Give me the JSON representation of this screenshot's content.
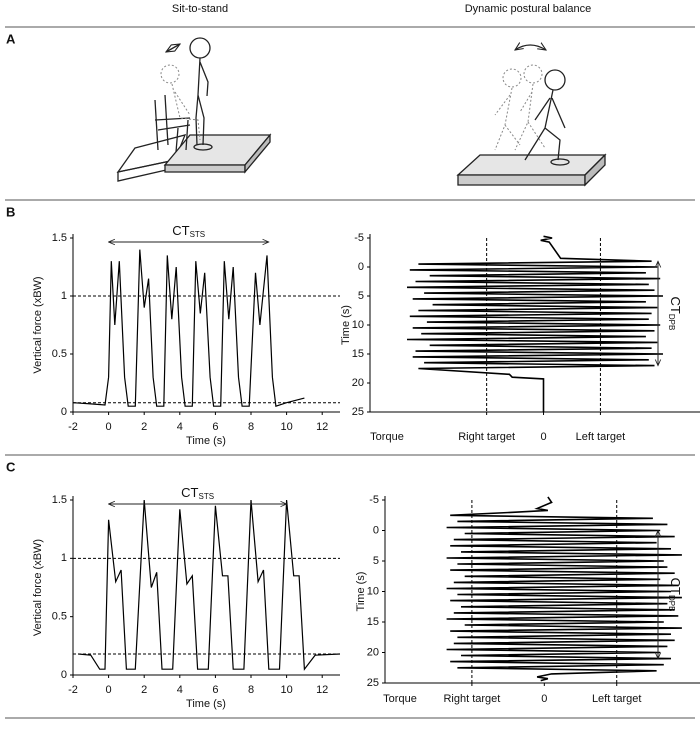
{
  "header": {
    "columns": [
      "Sit-to-stand",
      "Dynamic postural balance"
    ]
  },
  "panel_labels": [
    "A",
    "B",
    "C"
  ],
  "chart_data": [
    {
      "type": "line",
      "xlabel": "Time (s)",
      "ylabel": "Vertical force (xBW)",
      "color": "#000000",
      "xlim": [
        -2,
        13
      ],
      "ylim": [
        0,
        1.5
      ],
      "xticks": [
        -2,
        0,
        2,
        4,
        6,
        8,
        10,
        12
      ],
      "yticks": [
        0,
        0.5,
        1,
        1.5
      ],
      "hlines": [
        1,
        0.08
      ],
      "annotation": {
        "text": "CT",
        "subscript": "STS",
        "span": [
          0,
          9
        ],
        "axis": "x"
      },
      "x": [
        -2,
        -1,
        -0.2,
        0,
        0.15,
        0.35,
        0.6,
        0.9,
        1.1,
        1.5,
        1.75,
        2.0,
        2.25,
        2.5,
        2.7,
        3.1,
        3.3,
        3.55,
        3.8,
        4.1,
        4.3,
        4.7,
        4.9,
        5.15,
        5.4,
        5.7,
        5.9,
        6.3,
        6.5,
        6.75,
        7.0,
        7.3,
        7.5,
        7.9,
        8.25,
        8.5,
        8.9,
        9.2,
        9.4,
        10,
        11
      ],
      "values": [
        0.08,
        0.07,
        0.06,
        0.3,
        1.3,
        0.75,
        1.3,
        0.3,
        0.05,
        0.05,
        1.4,
        0.9,
        1.15,
        0.3,
        0.05,
        0.05,
        1.35,
        0.8,
        1.25,
        0.3,
        0.05,
        0.05,
        1.3,
        0.85,
        1.2,
        0.3,
        0.05,
        0.05,
        1.3,
        0.8,
        1.25,
        0.3,
        0.05,
        0.05,
        1.2,
        0.75,
        1.35,
        0.3,
        0.05,
        0.08,
        0.12
      ]
    },
    {
      "type": "line",
      "xlabel": "Torque",
      "ylabel": "Time (s)",
      "color": "#000000",
      "y_inverted": true,
      "xlim": [
        -3.05,
        2.75
      ],
      "ylim": [
        -5,
        25
      ],
      "xticks": [
        {
          "value": -1,
          "label": "Right target"
        },
        0,
        {
          "value": 1,
          "label": "Left target"
        }
      ],
      "yticks": [
        -5,
        0,
        5,
        10,
        15,
        20,
        25
      ],
      "vlines": [
        -1,
        1
      ],
      "annotation": {
        "text": "CT",
        "subscript": "DPB",
        "span": [
          -1,
          17
        ],
        "axis": "y"
      },
      "x": [
        0,
        0.15,
        -0.05,
        0.1,
        0.3,
        1.9,
        -2.2,
        2.0,
        -2.35,
        1.8,
        -2.0,
        2.05,
        -2.25,
        1.85,
        -2.4,
        1.95,
        -2.1,
        2.1,
        -2.3,
        1.8,
        -1.95,
        2.0,
        -2.2,
        1.9,
        -2.35,
        1.85,
        -2.05,
        2.05,
        -2.3,
        1.95,
        -2.15,
        1.8,
        -2.4,
        2.0,
        -2.0,
        1.9,
        -2.25,
        2.1,
        -2.3,
        1.85,
        -2.1,
        1.95,
        -2.2,
        -0.6,
        -0.55,
        0,
        0
      ],
      "values": [
        -5.3,
        -5,
        -4.6,
        -4.3,
        -1.5,
        -1,
        -0.5,
        0,
        0.5,
        1,
        1.5,
        2,
        2.5,
        3,
        3.5,
        4,
        4.5,
        5,
        5.5,
        6,
        6.5,
        7,
        7.5,
        8,
        8.5,
        9,
        9.5,
        10,
        10.5,
        11,
        11.5,
        12,
        12.5,
        13,
        13.5,
        14,
        14.5,
        15,
        15.5,
        16,
        16.5,
        17,
        17.5,
        18.5,
        19,
        19.3,
        25
      ]
    },
    {
      "type": "line",
      "xlabel": "Time (s)",
      "ylabel": "Vertical force (xBW)",
      "color": "#000000",
      "xlim": [
        -2,
        13
      ],
      "ylim": [
        0,
        1.5
      ],
      "xticks": [
        -2,
        0,
        2,
        4,
        6,
        8,
        10,
        12
      ],
      "yticks": [
        0,
        0.5,
        1,
        1.5
      ],
      "hlines": [
        1,
        0.18
      ],
      "annotation": {
        "text": "CT",
        "subscript": "STS",
        "span": [
          0,
          10
        ],
        "axis": "x"
      },
      "x": [
        -1.7,
        -1,
        -0.5,
        -0.2,
        0,
        0.4,
        0.7,
        1.0,
        1.5,
        2,
        2.4,
        2.7,
        3,
        3.6,
        4,
        4.4,
        4.7,
        5,
        5.6,
        6,
        6.4,
        6.7,
        7,
        7.6,
        8,
        8.4,
        8.7,
        9,
        9.6,
        10,
        10.4,
        10.7,
        11,
        11.6,
        13
      ],
      "values": [
        0.18,
        0.17,
        0.05,
        0.05,
        1.33,
        0.8,
        0.9,
        0.05,
        0.05,
        1.5,
        0.75,
        0.88,
        0.05,
        0.05,
        1.42,
        0.78,
        0.85,
        0.05,
        0.05,
        1.45,
        0.85,
        0.85,
        0.05,
        0.05,
        1.5,
        0.8,
        0.9,
        0.05,
        0.05,
        1.5,
        0.85,
        0.85,
        0.05,
        0.17,
        0.18
      ]
    },
    {
      "type": "line",
      "xlabel": "Torque",
      "ylabel": "Time (s)",
      "color": "#000000",
      "y_inverted": true,
      "xlim": [
        -2.2,
        2.15
      ],
      "ylim": [
        -5,
        25
      ],
      "xticks": [
        {
          "value": -1,
          "label": "Right target"
        },
        0,
        {
          "value": 1,
          "label": "Left target"
        }
      ],
      "yticks": [
        -5,
        0,
        5,
        10,
        15,
        20,
        25
      ],
      "vlines": [
        -1,
        1
      ],
      "annotation": {
        "text": "CT",
        "subscript": "DPB",
        "span": [
          0,
          21
        ],
        "axis": "y"
      },
      "x": [
        0.05,
        0.1,
        -0.1,
        0.05,
        -0.4,
        -1.3,
        1.5,
        -1.2,
        1.7,
        -1.35,
        1.6,
        -1.1,
        1.8,
        -1.25,
        1.55,
        -1.3,
        1.75,
        -1.15,
        1.9,
        -1.35,
        1.65,
        -1.2,
        1.7,
        -1.3,
        1.8,
        -1.1,
        1.6,
        -1.25,
        1.85,
        -1.35,
        1.75,
        -1.2,
        1.9,
        -1.3,
        1.7,
        -1.15,
        1.8,
        -1.25,
        1.85,
        -1.35,
        1.65,
        -1.1,
        1.9,
        -1.3,
        1.75,
        -1.2,
        1.8,
        -1.25,
        1.7,
        -1.35,
        1.6,
        -1.15,
        1.75,
        -1.3,
        1.65,
        -1.2,
        1.55,
        0.1,
        -0.1,
        0.05,
        -0.05
      ],
      "values": [
        -5.5,
        -4.6,
        -3.6,
        -3.3,
        -3,
        -2.5,
        -2,
        -1.5,
        -1,
        -0.5,
        0,
        0.5,
        1,
        1.5,
        2,
        2.5,
        3,
        3.5,
        4,
        4.5,
        5,
        5.5,
        6,
        6.5,
        7,
        7.5,
        8,
        8.5,
        9,
        9.5,
        10,
        10.5,
        11,
        11.5,
        12,
        12.5,
        13,
        13.5,
        14,
        14.5,
        15,
        15.5,
        16,
        16.5,
        17,
        17.5,
        18,
        18.5,
        19,
        19.5,
        20,
        20.5,
        21,
        21.5,
        22,
        22.5,
        23,
        23.5,
        24,
        24.3,
        24.6
      ]
    }
  ]
}
